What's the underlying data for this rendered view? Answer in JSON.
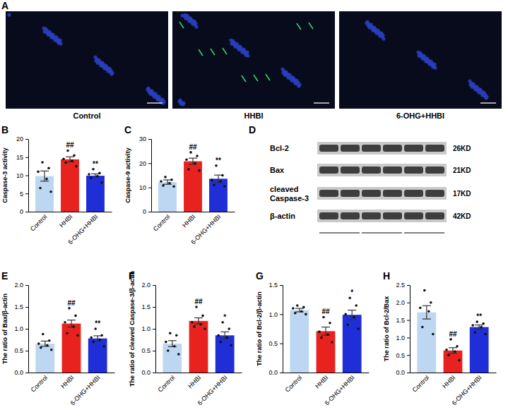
{
  "chart_data": [
    {
      "type": "bar",
      "y_label": "Caspase-3 activity",
      "categories": [
        "Control",
        "HHBI",
        "6-OHG+HHBI"
      ],
      "values": [
        9.8,
        14.4,
        9.9
      ],
      "errors": [
        1.4,
        0.7,
        0.5
      ],
      "points": [
        [
          13.6,
          12.0,
          11.0,
          9.0,
          6.5,
          5.5
        ],
        [
          16.8,
          15.5,
          14.5,
          14.0,
          13.5,
          12.5
        ],
        [
          11.7,
          10.6,
          10.3,
          9.8,
          9.3,
          8.0
        ]
      ],
      "colors": [
        "#bdd7f2",
        "#e8231f",
        "#1f2ed6"
      ],
      "ylim": [
        0,
        20
      ],
      "yticks": [
        0,
        5,
        10,
        15,
        20
      ],
      "annotations": [
        {
          "x": "HHBI",
          "text": "##"
        },
        {
          "x": "6-OHG+HHBI",
          "text": "**"
        }
      ]
    },
    {
      "type": "bar",
      "y_label": "Caspase-9 activity",
      "categories": [
        "Control",
        "HHBI",
        "6-OHG+HHBI"
      ],
      "values": [
        12.2,
        20.8,
        13.6
      ],
      "errors": [
        0.9,
        1.3,
        1.5
      ],
      "points": [
        [
          14.3,
          13.2,
          12.5,
          11.8,
          10.8,
          10.4
        ],
        [
          24.5,
          23.0,
          21.5,
          20.0,
          17.5,
          17.0
        ],
        [
          19.0,
          15.0,
          13.0,
          12.5,
          11.0,
          10.5
        ]
      ],
      "colors": [
        "#bdd7f2",
        "#e8231f",
        "#1f2ed6"
      ],
      "ylim": [
        0,
        30
      ],
      "yticks": [
        0,
        10,
        20,
        30
      ],
      "annotations": [
        {
          "x": "HHBI",
          "text": "##"
        },
        {
          "x": "6-OHG+HHBI",
          "text": "**"
        }
      ]
    },
    {
      "type": "bar",
      "y_label": "The ratio of Bax/β-actin",
      "categories": [
        "Control",
        "HHBI",
        "6-OHG+HHBI"
      ],
      "values": [
        0.66,
        1.12,
        0.78
      ],
      "errors": [
        0.06,
        0.08,
        0.06
      ],
      "points": [
        [
          0.88,
          0.73,
          0.66,
          0.62,
          0.57,
          0.52
        ],
        [
          1.47,
          1.3,
          1.15,
          1.05,
          0.9,
          0.85
        ],
        [
          1.0,
          0.85,
          0.8,
          0.75,
          0.7,
          0.6
        ]
      ],
      "colors": [
        "#bdd7f2",
        "#e8231f",
        "#1f2ed6"
      ],
      "ylim": [
        0,
        2
      ],
      "yticks": [
        {
          "value": 0,
          "label": "0.0"
        },
        0.5,
        {
          "value": 1,
          "label": "1.0"
        },
        1.5,
        {
          "value": 2,
          "label": "2.0"
        }
      ],
      "annotations": [
        {
          "x": "HHBI",
          "text": "##"
        },
        {
          "x": "6-OHG+HHBI",
          "text": "**"
        }
      ]
    },
    {
      "type": "bar",
      "y_label": "The ratio of cleaved Caspase-3/β-actin",
      "categories": [
        "Control",
        "HHBI",
        "6-OHG+HHBI"
      ],
      "values": [
        0.66,
        1.18,
        0.85
      ],
      "errors": [
        0.07,
        0.07,
        0.08
      ],
      "points": [
        [
          0.9,
          0.85,
          0.7,
          0.6,
          0.5,
          0.42
        ],
        [
          1.5,
          1.3,
          1.15,
          1.1,
          1.05,
          1.0
        ],
        [
          1.15,
          1.0,
          0.85,
          0.8,
          0.7,
          0.62
        ]
      ],
      "colors": [
        "#bdd7f2",
        "#e8231f",
        "#1f2ed6"
      ],
      "ylim": [
        0,
        2
      ],
      "yticks": [
        {
          "value": 0,
          "label": "0.0"
        },
        0.5,
        {
          "value": 1,
          "label": "1.0"
        },
        1.5,
        {
          "value": 2,
          "label": "2.0"
        }
      ],
      "annotations": [
        {
          "x": "HHBI",
          "text": "##"
        },
        {
          "x": "6-OHG+HHBI",
          "text": "*"
        }
      ]
    },
    {
      "type": "bar",
      "y_label": "The ratio of Bcl-2/β-actin",
      "categories": [
        "Control",
        "HHBI",
        "6-OHG+HHBI"
      ],
      "values": [
        1.07,
        0.71,
        0.99
      ],
      "errors": [
        0.03,
        0.07,
        0.08
      ],
      "points": [
        [
          1.15,
          1.12,
          1.1,
          1.05,
          1.02,
          1.0
        ],
        [
          0.95,
          0.85,
          0.7,
          0.65,
          0.6,
          0.52
        ],
        [
          1.28,
          1.15,
          1.0,
          0.95,
          0.82,
          0.75
        ]
      ],
      "colors": [
        "#bdd7f2",
        "#e8231f",
        "#1f2ed6"
      ],
      "ylim": [
        0,
        1.5
      ],
      "yticks": [
        {
          "value": 0,
          "label": "0.0"
        },
        0.5,
        {
          "value": 1,
          "label": "1.0"
        },
        1.5
      ],
      "annotations": [
        {
          "x": "HHBI",
          "text": "##"
        },
        {
          "x": "6-OHG+HHBI",
          "text": "*"
        }
      ]
    },
    {
      "type": "bar",
      "y_label": "The ratio of Bcl-2/Bax",
      "categories": [
        "Control",
        "HHBI",
        "6-OHG+HHBI"
      ],
      "values": [
        1.72,
        0.63,
        1.3
      ],
      "errors": [
        0.19,
        0.08,
        0.06
      ],
      "points": [
        [
          2.35,
          2.0,
          1.85,
          1.75,
          1.3,
          1.1
        ],
        [
          0.95,
          0.75,
          0.65,
          0.6,
          0.5,
          0.35
        ],
        [
          1.45,
          1.4,
          1.35,
          1.3,
          1.15,
          1.1
        ]
      ],
      "colors": [
        "#bdd7f2",
        "#e8231f",
        "#1f2ed6"
      ],
      "ylim": [
        0,
        2.5
      ],
      "yticks": [
        {
          "value": 0,
          "label": "0.0"
        },
        0.5,
        {
          "value": 1,
          "label": "1.0"
        },
        1.5,
        {
          "value": 2,
          "label": "2.0"
        },
        2.5
      ],
      "annotations": [
        {
          "x": "HHBI",
          "text": "##"
        },
        {
          "x": "6-OHG+HHBI",
          "text": "**"
        }
      ]
    }
  ],
  "figure": {
    "panel_labels": [
      "A",
      "B",
      "C",
      "D",
      "E",
      "F",
      "G",
      "H"
    ],
    "images": {
      "labels": [
        "Control",
        "HHBI",
        "6-OHG+HHBI"
      ]
    },
    "blot": {
      "rows": [
        {
          "label": [
            "Bcl-2"
          ],
          "size": "26KD"
        },
        {
          "label": [
            "Bax"
          ],
          "size": "21KD"
        },
        {
          "label": [
            "cleaved",
            "Caspase-3"
          ],
          "size": "17KD"
        },
        {
          "label": [
            "β-actin"
          ],
          "size": "42KD"
        }
      ]
    }
  }
}
